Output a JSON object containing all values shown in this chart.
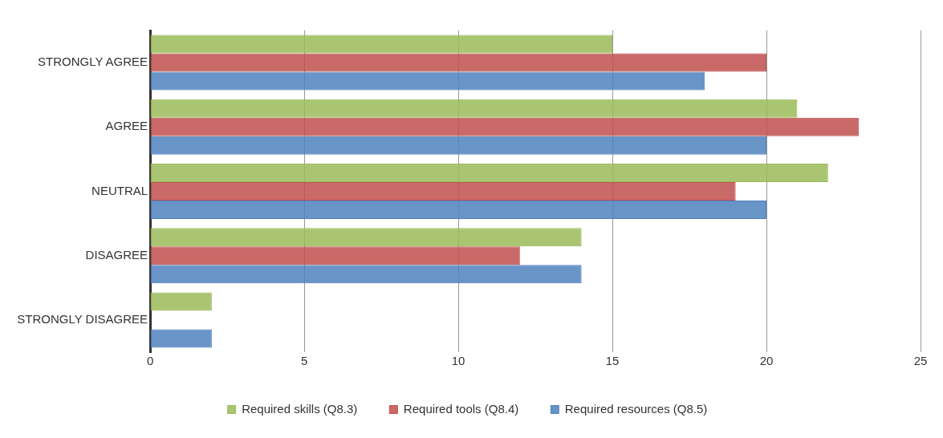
{
  "chart_data": {
    "type": "bar",
    "orientation": "horizontal",
    "categories": [
      "STRONGLY AGREE",
      "AGREE",
      "NEUTRAL",
      "DISAGREE",
      "STRONGLY DISAGREE"
    ],
    "series": [
      {
        "name": "Required skills (Q8.3)",
        "color": "#9bbb59",
        "values": [
          15,
          21,
          22,
          14,
          2
        ]
      },
      {
        "name": "Required tools (Q8.4)",
        "color": "#c0504d",
        "values": [
          20,
          23,
          19,
          12,
          0
        ]
      },
      {
        "name": "Required resources (Q8.5)",
        "color": "#4f81bd",
        "values": [
          18,
          20,
          20,
          14,
          2
        ]
      }
    ],
    "xlim": [
      0,
      25
    ],
    "xticks": [
      0,
      5,
      10,
      15,
      20,
      25
    ],
    "grid": "x",
    "legend": "bottom"
  }
}
